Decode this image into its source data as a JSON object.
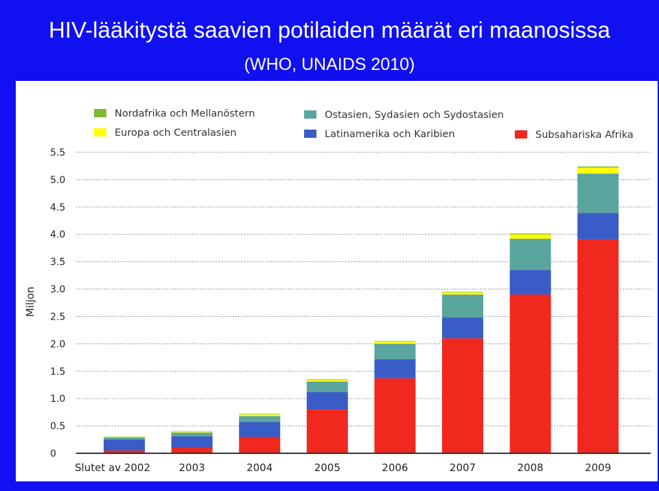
{
  "slide": {
    "title": "HIV-lääkitystä saavien potilaiden määrät eri maanosissa",
    "subtitle": "(WHO, UNAIDS 2010)"
  },
  "chart_data": {
    "type": "bar",
    "stacked": true,
    "categories": [
      "Slutet av 2002",
      "2003",
      "2004",
      "2005",
      "2006",
      "2007",
      "2008",
      "2009"
    ],
    "ylabel": "Miljon",
    "ylim": [
      0,
      5.5
    ],
    "yticks": [
      "0",
      "0.5",
      "1.0",
      "1.5",
      "2.0",
      "2.5",
      "3.0",
      "3.5",
      "4.0",
      "4.5",
      "5.0",
      "5.5"
    ],
    "yticks_values": [
      0,
      0.5,
      1.0,
      1.5,
      2.0,
      2.5,
      3.0,
      3.5,
      4.0,
      4.5,
      5.0,
      5.5
    ],
    "grid": true,
    "legend_position": "top",
    "series": [
      {
        "name": "Subsahariska Afrika",
        "color": "#f0281e",
        "values": [
          0.05,
          0.1,
          0.3,
          0.8,
          1.37,
          2.1,
          2.9,
          3.91
        ]
      },
      {
        "name": "Latinamerika och Karibien",
        "color": "#3a5cc6",
        "values": [
          0.2,
          0.21,
          0.27,
          0.32,
          0.35,
          0.38,
          0.45,
          0.48
        ]
      },
      {
        "name": "Ostasien, Sydasien och Sydostasien",
        "color": "#5aa59e",
        "values": [
          0.04,
          0.07,
          0.11,
          0.19,
          0.28,
          0.42,
          0.57,
          0.72
        ]
      },
      {
        "name": "Europa och Centralasien",
        "color": "#ffff00",
        "values": [
          0.01,
          0.02,
          0.03,
          0.03,
          0.04,
          0.04,
          0.08,
          0.11
        ]
      },
      {
        "name": "Nordafrika och Mellanöstern",
        "color": "#7fba2f",
        "values": [
          0.005,
          0.005,
          0.01,
          0.01,
          0.01,
          0.01,
          0.015,
          0.02
        ]
      }
    ],
    "legend_order": [
      "Nordafrika och Mellanöstern",
      "Ostasien, Sydasien och Sydostasien",
      "Europa och Centralasien",
      "Latinamerika och Karibien",
      "Subsahariska Afrika"
    ]
  }
}
